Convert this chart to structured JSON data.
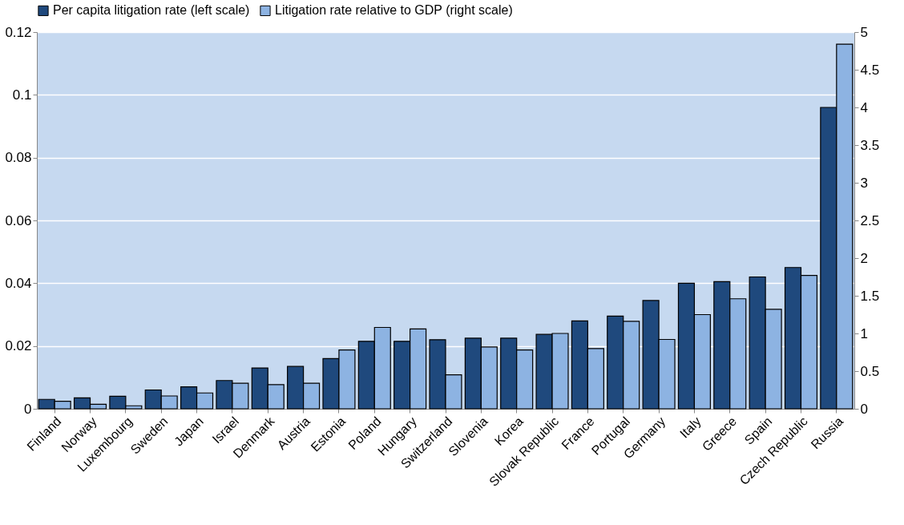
{
  "chart_data": {
    "type": "bar",
    "categories": [
      "Finland",
      "Norway",
      "Luxembourg",
      "Sweden",
      "Japan",
      "Israel",
      "Denmark",
      "Austria",
      "Estonia",
      "Poland",
      "Hungary",
      "Switzerland",
      "Slovenia",
      "Korea",
      "Slovak Republic",
      "France",
      "Portugal",
      "Germany",
      "Italy",
      "Greece",
      "Spain",
      "Czech Republic",
      "Russia"
    ],
    "series": [
      {
        "name": "Per capita litigation rate (left scale)",
        "color": "#1f497d",
        "values": [
          0.003,
          0.0035,
          0.004,
          0.006,
          0.007,
          0.009,
          0.013,
          0.0135,
          0.016,
          0.0215,
          0.0215,
          0.022,
          0.0225,
          0.0225,
          0.0237,
          0.028,
          0.0295,
          0.0345,
          0.04,
          0.0405,
          0.042,
          0.045,
          0.096
        ]
      },
      {
        "name": "Litigation rate relative to GDP (right scale)",
        "color": "#8db3e2",
        "axis": "y2",
        "values": [
          0.1,
          0.06,
          0.04,
          0.17,
          0.21,
          0.34,
          0.32,
          0.34,
          0.78,
          1.08,
          1.06,
          0.45,
          0.82,
          0.78,
          1.0,
          0.8,
          1.16,
          0.92,
          1.25,
          1.46,
          1.32,
          1.77,
          4.84
        ]
      }
    ],
    "ylim": [
      0,
      0.12
    ],
    "yticks": [
      0,
      0.02,
      0.04,
      0.06,
      0.08,
      0.1,
      0.12
    ],
    "y2lim": [
      0,
      5
    ],
    "y2ticks": [
      0,
      0.5,
      1,
      1.5,
      2,
      2.5,
      3,
      3.5,
      4,
      4.5,
      5
    ],
    "grid": "y",
    "legend": "top"
  }
}
